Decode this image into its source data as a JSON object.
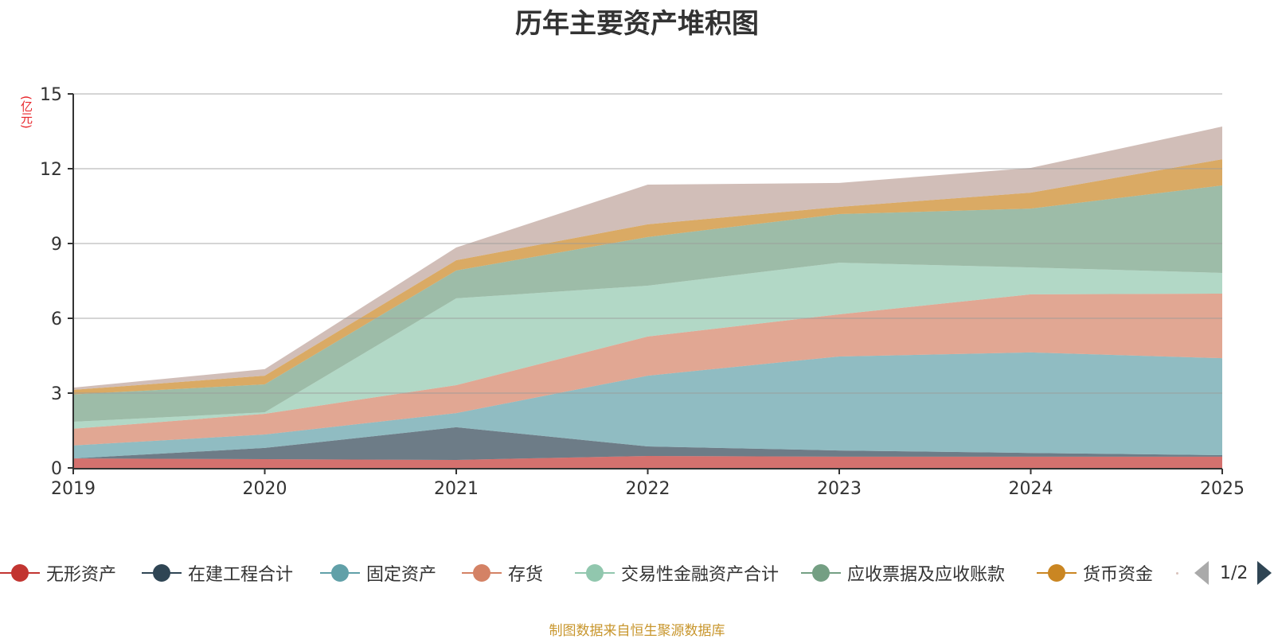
{
  "title": "历年主要资产堆积图",
  "source_note": "制图数据来自恒生聚源数据库",
  "legend_pager": {
    "text": "1/2",
    "prev_icon": "triangle-left-icon",
    "next_icon": "triangle-right-icon"
  },
  "chart_data": {
    "type": "area",
    "stacked": true,
    "title": "历年主要资产堆积图",
    "ylabel": "(亿元)",
    "xlabel": "",
    "ylim": [
      0,
      15
    ],
    "yticks": [
      0,
      3,
      6,
      9,
      12,
      15
    ],
    "ytick_labels": [
      "0",
      "3",
      "6",
      "9",
      "12",
      "15"
    ],
    "grid": true,
    "legend_position": "bottom",
    "x": [
      "2019",
      "2020",
      "2021",
      "2022",
      "2023",
      "2024",
      "2025"
    ],
    "series": [
      {
        "name": "无形资产",
        "color": "#c23531",
        "values": [
          0.38,
          0.35,
          0.32,
          0.48,
          0.45,
          0.45,
          0.45
        ]
      },
      {
        "name": "在建工程合计",
        "color": "#2f4554",
        "values": [
          0.0,
          0.45,
          1.31,
          0.38,
          0.25,
          0.15,
          0.06
        ]
      },
      {
        "name": "固定资产",
        "color": "#61a0a8",
        "values": [
          0.52,
          0.54,
          0.57,
          2.84,
          3.77,
          4.03,
          3.89
        ]
      },
      {
        "name": "存货",
        "color": "#d48265",
        "values": [
          0.67,
          0.83,
          1.12,
          1.57,
          1.69,
          2.33,
          2.59
        ]
      },
      {
        "name": "交易性金融资产合计",
        "color": "#91c7ae",
        "values": [
          0.28,
          0.06,
          3.48,
          2.04,
          2.07,
          1.08,
          0.83
        ]
      },
      {
        "name": "应收票据及应收账款",
        "color": "#749f83",
        "values": [
          1.1,
          1.12,
          1.12,
          1.95,
          1.95,
          2.36,
          3.51
        ]
      },
      {
        "name": "货币资金",
        "color": "#ca8622",
        "values": [
          0.18,
          0.35,
          0.41,
          0.51,
          0.29,
          0.64,
          1.05
        ]
      },
      {
        "name": "",
        "color": "#bda29a",
        "values": [
          0.09,
          0.26,
          0.51,
          1.59,
          0.96,
          0.99,
          1.31
        ]
      }
    ]
  }
}
